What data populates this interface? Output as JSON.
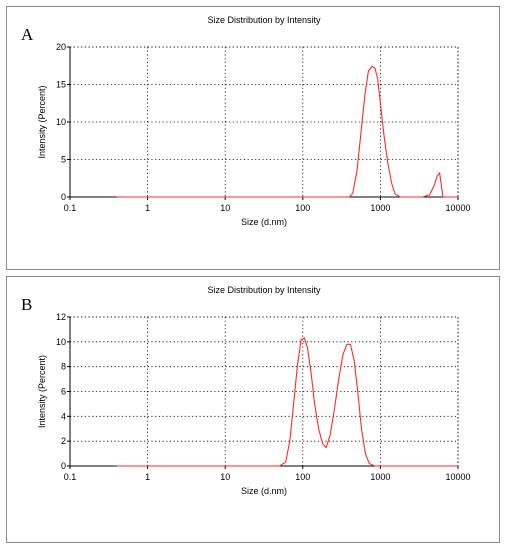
{
  "chart_data": [
    {
      "type": "line",
      "panel_label": "A",
      "title": "Size Distribution by Intensity",
      "xlabel": "Size (d.nm)",
      "ylabel": "Intensity (Percent)",
      "xscale": "log",
      "xlim": [
        0.1,
        10000
      ],
      "ylim": [
        0,
        20
      ],
      "x_ticks": [
        "0.1",
        "1",
        "10",
        "100",
        "1000",
        "10000"
      ],
      "y_ticks": [
        "0",
        "5",
        "10",
        "15",
        "20"
      ],
      "grid": true,
      "series_color": "#ff2a2a",
      "series": [
        {
          "x": [
            0.4,
            100,
            400,
            440,
            500,
            560,
            630,
            700,
            780,
            850,
            920,
            1000,
            1120,
            1250,
            1400,
            1550,
            1800,
            3500,
            4300,
            4900,
            5400,
            5800,
            6400,
            10000
          ],
          "values": [
            0,
            0,
            0,
            0.5,
            3.5,
            8.5,
            13.5,
            16.8,
            17.4,
            17.2,
            15.8,
            12.5,
            8.0,
            4.5,
            1.8,
            0.4,
            0,
            0,
            0.3,
            1.5,
            2.8,
            3.2,
            0,
            0
          ]
        }
      ]
    },
    {
      "type": "line",
      "panel_label": "B",
      "title": "Size Distribution by Intensity",
      "xlabel": "Size (d.nm)",
      "ylabel": "Intensity (Percent)",
      "xscale": "log",
      "xlim": [
        0.1,
        10000
      ],
      "ylim": [
        0,
        12
      ],
      "x_ticks": [
        "0.1",
        "1",
        "10",
        "100",
        "1000",
        "10000"
      ],
      "y_ticks": [
        "0",
        "2",
        "4",
        "6",
        "8",
        "10",
        "12"
      ],
      "grid": true,
      "series_color": "#ff2a2a",
      "series": [
        {
          "x": [
            0.4,
            50,
            60,
            68,
            76,
            85,
            95,
            105,
            115,
            128,
            142,
            160,
            180,
            200,
            225,
            255,
            290,
            330,
            370,
            410,
            460,
            510,
            570,
            640,
            720,
            850,
            10000
          ],
          "values": [
            0,
            0,
            0.3,
            2.0,
            5.0,
            8.0,
            10.2,
            10.3,
            9.5,
            7.5,
            5.0,
            3.0,
            1.8,
            1.5,
            2.5,
            4.5,
            7.0,
            9.0,
            9.8,
            9.8,
            8.5,
            6.0,
            3.0,
            1.0,
            0.2,
            0,
            0
          ]
        }
      ]
    }
  ]
}
